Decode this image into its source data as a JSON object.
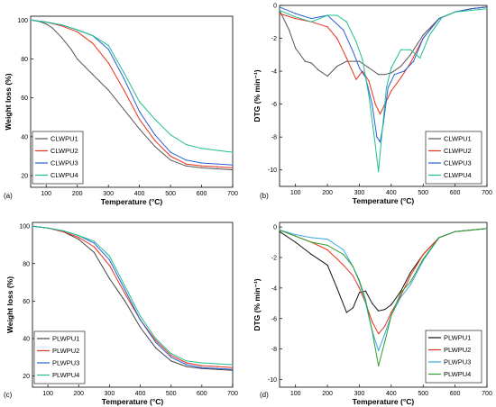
{
  "chart_data": [
    {
      "type": "line",
      "panel_label": "(a)",
      "xlabel": "Temperature (°C)",
      "ylabel": "Weight loss (%)",
      "xlim": [
        50,
        700
      ],
      "ylim": [
        14,
        102
      ],
      "xticks": [
        100,
        200,
        300,
        400,
        500,
        600,
        700
      ],
      "yticks": [
        20,
        40,
        60,
        80,
        100
      ],
      "legend_position": "bottom-left",
      "series": [
        {
          "name": "CLWPU1",
          "color": "#555555",
          "x": [
            50,
            80,
            100,
            120,
            150,
            180,
            200,
            250,
            300,
            350,
            400,
            450,
            500,
            550,
            600,
            650,
            700
          ],
          "y": [
            100,
            99.2,
            98,
            96,
            91,
            85,
            80,
            72,
            64,
            54,
            44,
            35,
            28,
            25,
            24,
            23.5,
            23
          ]
        },
        {
          "name": "CLWPU2",
          "color": "#e8321c",
          "x": [
            50,
            100,
            150,
            200,
            250,
            300,
            350,
            400,
            450,
            500,
            550,
            600,
            650,
            700
          ],
          "y": [
            100,
            99,
            97,
            94,
            88,
            78,
            64,
            49,
            38,
            30,
            26,
            25,
            24.5,
            24
          ]
        },
        {
          "name": "CLWPU3",
          "color": "#2a5fd6",
          "x": [
            50,
            100,
            150,
            200,
            250,
            300,
            350,
            400,
            450,
            500,
            550,
            600,
            650,
            700
          ],
          "y": [
            100,
            99,
            97.5,
            95,
            92,
            85,
            70,
            53,
            41,
            32,
            28,
            26.5,
            26,
            25.5
          ]
        },
        {
          "name": "CLWPU4",
          "color": "#1fbf8f",
          "x": [
            50,
            100,
            150,
            200,
            250,
            300,
            350,
            400,
            450,
            500,
            550,
            600,
            650,
            700
          ],
          "y": [
            100,
            99,
            97.5,
            95,
            92,
            87,
            73,
            58,
            49,
            41,
            36,
            34,
            33,
            32
          ]
        }
      ]
    },
    {
      "type": "line",
      "panel_label": "(b)",
      "xlabel": "Temperature (°C)",
      "ylabel": "DTG (% min⁻¹)",
      "xlim": [
        50,
        700
      ],
      "ylim": [
        -11,
        0
      ],
      "xticks": [
        100,
        200,
        300,
        400,
        500,
        600,
        700
      ],
      "yticks": [
        0,
        -2,
        -4,
        -6,
        -8,
        -10
      ],
      "legend_position": "bottom-right",
      "series": [
        {
          "name": "CLWPU1",
          "color": "#555555",
          "x": [
            50,
            80,
            100,
            130,
            150,
            170,
            200,
            230,
            260,
            300,
            330,
            360,
            380,
            400,
            430,
            460,
            500,
            550,
            600,
            650,
            700
          ],
          "y": [
            -0.3,
            -1.5,
            -2.6,
            -3.4,
            -3.5,
            -3.9,
            -4.3,
            -3.7,
            -3.4,
            -3.4,
            -3.8,
            -4.2,
            -4.2,
            -4.1,
            -3.7,
            -3.0,
            -1.8,
            -0.8,
            -0.4,
            -0.2,
            -0.1
          ]
        },
        {
          "name": "CLWPU2",
          "color": "#e8321c",
          "x": [
            50,
            100,
            150,
            200,
            230,
            260,
            290,
            310,
            330,
            350,
            365,
            380,
            400,
            430,
            460,
            500,
            550,
            600,
            650,
            700
          ],
          "y": [
            -0.5,
            -0.8,
            -1.0,
            -1.3,
            -2.0,
            -3.2,
            -4.5,
            -4.0,
            -4.6,
            -6.0,
            -6.6,
            -6.0,
            -5.2,
            -4.4,
            -3.5,
            -2.0,
            -0.8,
            -0.4,
            -0.2,
            -0.1
          ]
        },
        {
          "name": "CLWPU3",
          "color": "#2a5fd6",
          "x": [
            50,
            100,
            150,
            200,
            250,
            280,
            300,
            320,
            340,
            355,
            365,
            375,
            390,
            410,
            440,
            470,
            500,
            550,
            600,
            650,
            700
          ],
          "y": [
            -0.1,
            -0.5,
            -0.8,
            -0.6,
            -1.5,
            -2.8,
            -3.8,
            -4.4,
            -6.0,
            -8.0,
            -8.3,
            -7.2,
            -5.0,
            -4.2,
            -4.0,
            -3.4,
            -2.0,
            -0.8,
            -0.4,
            -0.2,
            -0.1
          ]
        },
        {
          "name": "CLWPU4",
          "color": "#1fbf8f",
          "x": [
            50,
            100,
            150,
            200,
            230,
            260,
            290,
            310,
            330,
            350,
            360,
            370,
            385,
            400,
            430,
            460,
            490,
            520,
            560,
            600,
            650,
            700
          ],
          "y": [
            -0.3,
            -0.7,
            -1.0,
            -0.6,
            -0.6,
            -1.0,
            -2.2,
            -3.3,
            -5.5,
            -8.5,
            -10.1,
            -8.0,
            -5.0,
            -3.8,
            -2.7,
            -2.7,
            -3.2,
            -1.8,
            -0.7,
            -0.4,
            -0.3,
            -0.2
          ]
        }
      ]
    },
    {
      "type": "line",
      "panel_label": "(c)",
      "xlabel": "Temperature (°C)",
      "ylabel": "Weight loss (%)",
      "xlim": [
        50,
        700
      ],
      "ylim": [
        14,
        102
      ],
      "xticks": [
        100,
        200,
        300,
        400,
        500,
        600,
        700
      ],
      "yticks": [
        20,
        40,
        60,
        80,
        100
      ],
      "legend_position": "bottom-left",
      "series": [
        {
          "name": "PLWPU1",
          "color": "#444444",
          "x": [
            50,
            100,
            150,
            200,
            250,
            300,
            350,
            400,
            450,
            500,
            550,
            600,
            650,
            700
          ],
          "y": [
            100,
            99,
            97,
            93,
            86,
            72,
            60,
            46,
            35,
            28,
            25,
            24,
            23.5,
            23
          ]
        },
        {
          "name": "PLWPU2",
          "color": "#e8321c",
          "x": [
            50,
            100,
            150,
            200,
            250,
            300,
            350,
            400,
            450,
            500,
            550,
            600,
            650,
            700
          ],
          "y": [
            100,
            99,
            97,
            94,
            89,
            79,
            64,
            50,
            39,
            31,
            27,
            25.5,
            25,
            24.5
          ]
        },
        {
          "name": "PLWPU3",
          "color": "#2a5fd6",
          "x": [
            50,
            100,
            150,
            200,
            250,
            300,
            350,
            400,
            450,
            500,
            550,
            600,
            650,
            700
          ],
          "y": [
            100,
            99,
            97.5,
            95,
            91,
            82,
            66,
            50,
            38,
            30,
            26,
            24.5,
            24,
            23.5
          ]
        },
        {
          "name": "PLWPU4",
          "color": "#1fbf8f",
          "x": [
            50,
            100,
            150,
            200,
            250,
            300,
            350,
            400,
            450,
            500,
            550,
            600,
            650,
            700
          ],
          "y": [
            100,
            99,
            97.5,
            95,
            92,
            84,
            68,
            52,
            40,
            32,
            28,
            27,
            26.5,
            26
          ]
        }
      ]
    },
    {
      "type": "line",
      "panel_label": "(d)",
      "xlabel": "Temperature (°C)",
      "ylabel": "DTG (% min⁻¹)",
      "xlim": [
        50,
        700
      ],
      "ylim": [
        -10.5,
        0.3
      ],
      "xticks": [
        100,
        200,
        300,
        400,
        500,
        600,
        700
      ],
      "yticks": [
        0,
        -2,
        -4,
        -6,
        -8,
        -10
      ],
      "legend_position": "bottom-right",
      "series": [
        {
          "name": "PLWPU1",
          "color": "#111111",
          "x": [
            50,
            100,
            150,
            200,
            230,
            260,
            280,
            300,
            320,
            340,
            360,
            380,
            400,
            430,
            460,
            500,
            550,
            600,
            650,
            700
          ],
          "y": [
            -0.3,
            -1.0,
            -1.8,
            -2.5,
            -4.0,
            -5.6,
            -5.3,
            -4.3,
            -4.2,
            -5.0,
            -5.5,
            -5.4,
            -5.1,
            -4.2,
            -3.0,
            -1.8,
            -0.7,
            -0.3,
            -0.2,
            -0.1
          ]
        },
        {
          "name": "PLWPU2",
          "color": "#e8321c",
          "x": [
            50,
            100,
            150,
            200,
            250,
            280,
            300,
            320,
            340,
            360,
            380,
            400,
            430,
            460,
            500,
            550,
            600,
            650,
            700
          ],
          "y": [
            -0.2,
            -0.6,
            -1.0,
            -1.5,
            -2.5,
            -3.2,
            -4.0,
            -5.0,
            -6.2,
            -7.0,
            -6.5,
            -5.6,
            -4.5,
            -3.2,
            -1.8,
            -0.7,
            -0.3,
            -0.2,
            -0.1
          ]
        },
        {
          "name": "PLWPU3",
          "color": "#38a9e0",
          "x": [
            50,
            100,
            150,
            200,
            250,
            280,
            300,
            320,
            340,
            360,
            380,
            400,
            430,
            460,
            500,
            550,
            600,
            650,
            700
          ],
          "y": [
            -0.2,
            -0.5,
            -0.7,
            -0.8,
            -1.5,
            -2.6,
            -3.6,
            -5.0,
            -6.8,
            -8.1,
            -7.0,
            -5.8,
            -4.6,
            -3.8,
            -2.2,
            -0.7,
            -0.3,
            -0.2,
            -0.1
          ]
        },
        {
          "name": "PLWPU4",
          "color": "#2ea02e",
          "x": [
            50,
            100,
            150,
            200,
            250,
            280,
            300,
            320,
            340,
            360,
            380,
            400,
            430,
            460,
            500,
            550,
            600,
            650,
            700
          ],
          "y": [
            -0.2,
            -0.6,
            -1.0,
            -1.2,
            -1.8,
            -2.6,
            -3.5,
            -4.8,
            -6.8,
            -9.1,
            -7.5,
            -5.8,
            -4.3,
            -3.6,
            -2.1,
            -0.7,
            -0.3,
            -0.2,
            -0.1
          ]
        }
      ]
    }
  ]
}
